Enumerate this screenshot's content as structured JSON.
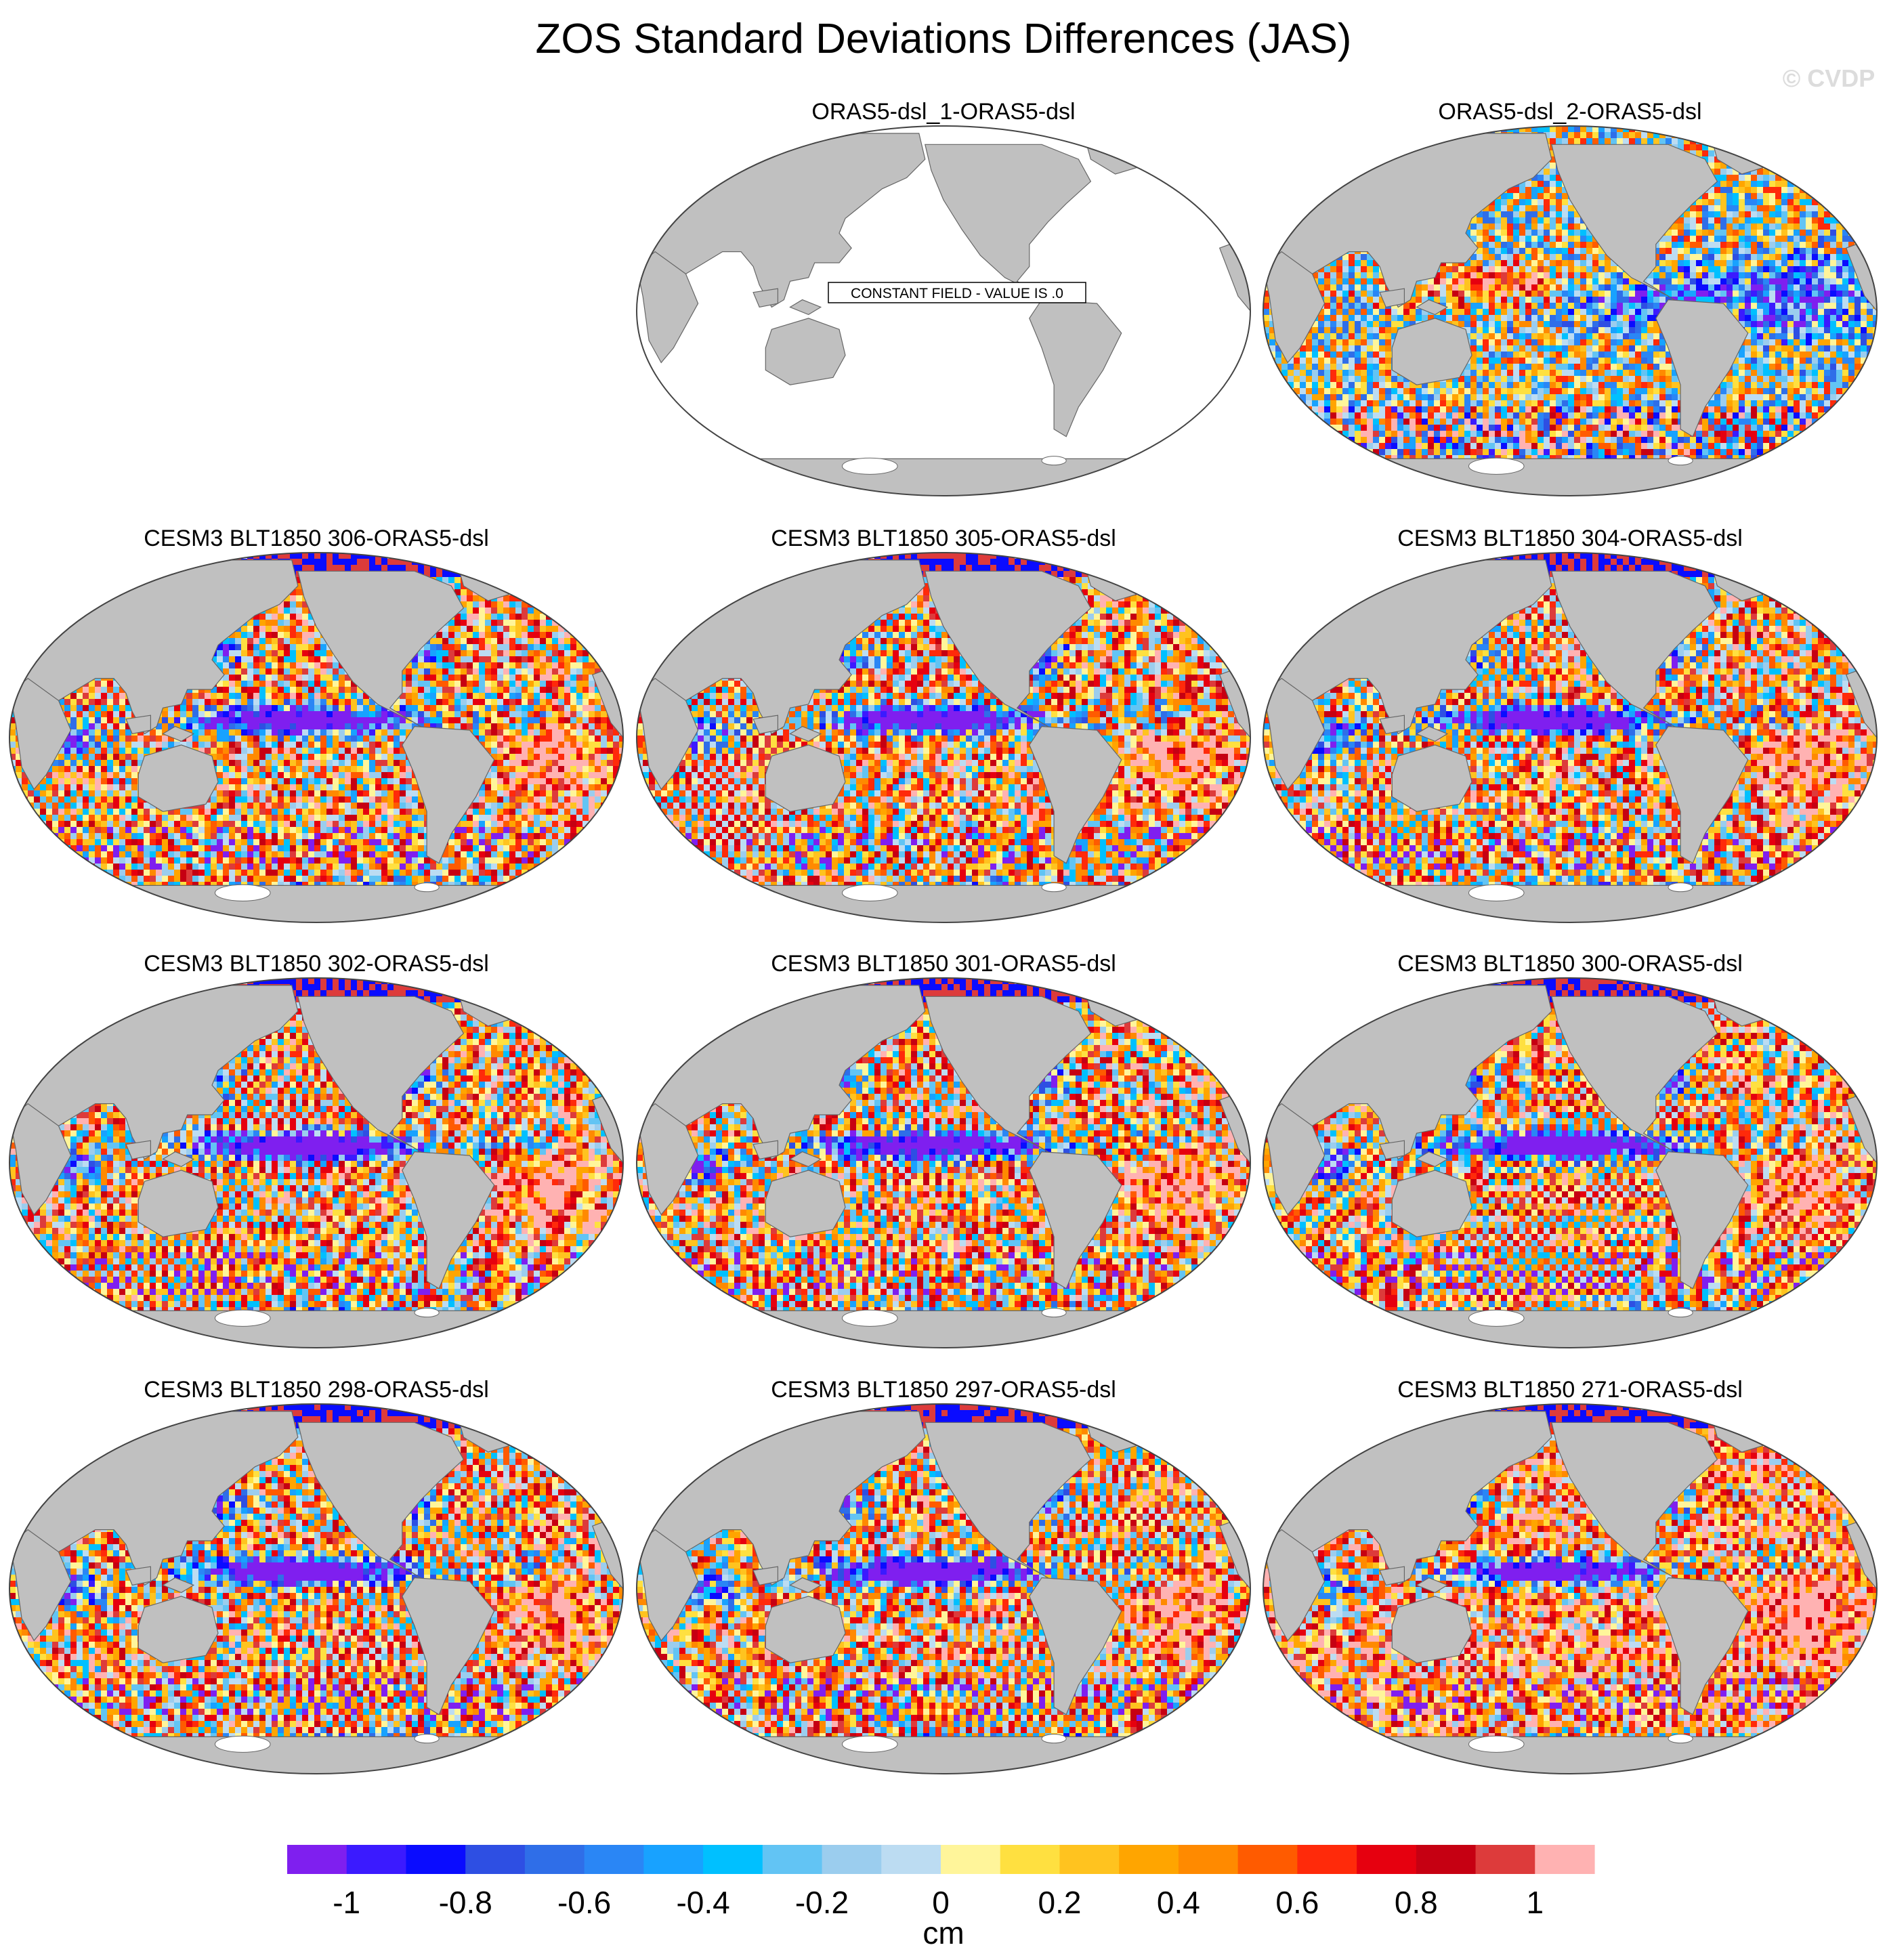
{
  "chart_data": {
    "type": "heatmap",
    "title": "ZOS Standard Deviations Differences (JAS)",
    "watermark": "© CVDP",
    "colorbar": {
      "units": "cm",
      "tick_labels": [
        "-1",
        "-0.8",
        "-0.6",
        "-0.4",
        "-0.2",
        "0",
        "0.2",
        "0.4",
        "0.6",
        "0.8",
        "1"
      ],
      "range": [
        -1.1,
        1.1
      ],
      "colors": [
        "#7f1fef",
        "#3b1aff",
        "#0a0cff",
        "#2e4fe3",
        "#2f6ee8",
        "#2a86f5",
        "#18a2ff",
        "#00c0ff",
        "#62c4f4",
        "#9bcdee",
        "#bcdcf2",
        "#fff59a",
        "#ffe040",
        "#ffc31f",
        "#ffa500",
        "#ff8a00",
        "#ff5b00",
        "#ff2a0a",
        "#e6000f",
        "#c60012",
        "#dd3b3b",
        "#ffb2b2"
      ]
    },
    "panels": [
      {
        "title": "ORAS5-dsl_1-ORAS5-dsl",
        "style": "constant",
        "note": "CONSTANT FIELD - VALUE IS .0"
      },
      {
        "title": "ORAS5-dsl_2-ORAS5-dsl",
        "style": "noisy"
      },
      {
        "title": "CESM3 BLT1850 306-ORAS5-dsl",
        "style": "model"
      },
      {
        "title": "CESM3 BLT1850 305-ORAS5-dsl",
        "style": "model"
      },
      {
        "title": "CESM3 BLT1850 304-ORAS5-dsl",
        "style": "model"
      },
      {
        "title": "CESM3 BLT1850 302-ORAS5-dsl",
        "style": "model"
      },
      {
        "title": "CESM3 BLT1850 301-ORAS5-dsl",
        "style": "model"
      },
      {
        "title": "CESM3 BLT1850 300-ORAS5-dsl",
        "style": "model"
      },
      {
        "title": "CESM3 BLT1850 298-ORAS5-dsl",
        "style": "model"
      },
      {
        "title": "CESM3 BLT1850 297-ORAS5-dsl",
        "style": "model"
      },
      {
        "title": "CESM3 BLT1850 271-ORAS5-dsl",
        "style": "model_pink"
      }
    ]
  }
}
